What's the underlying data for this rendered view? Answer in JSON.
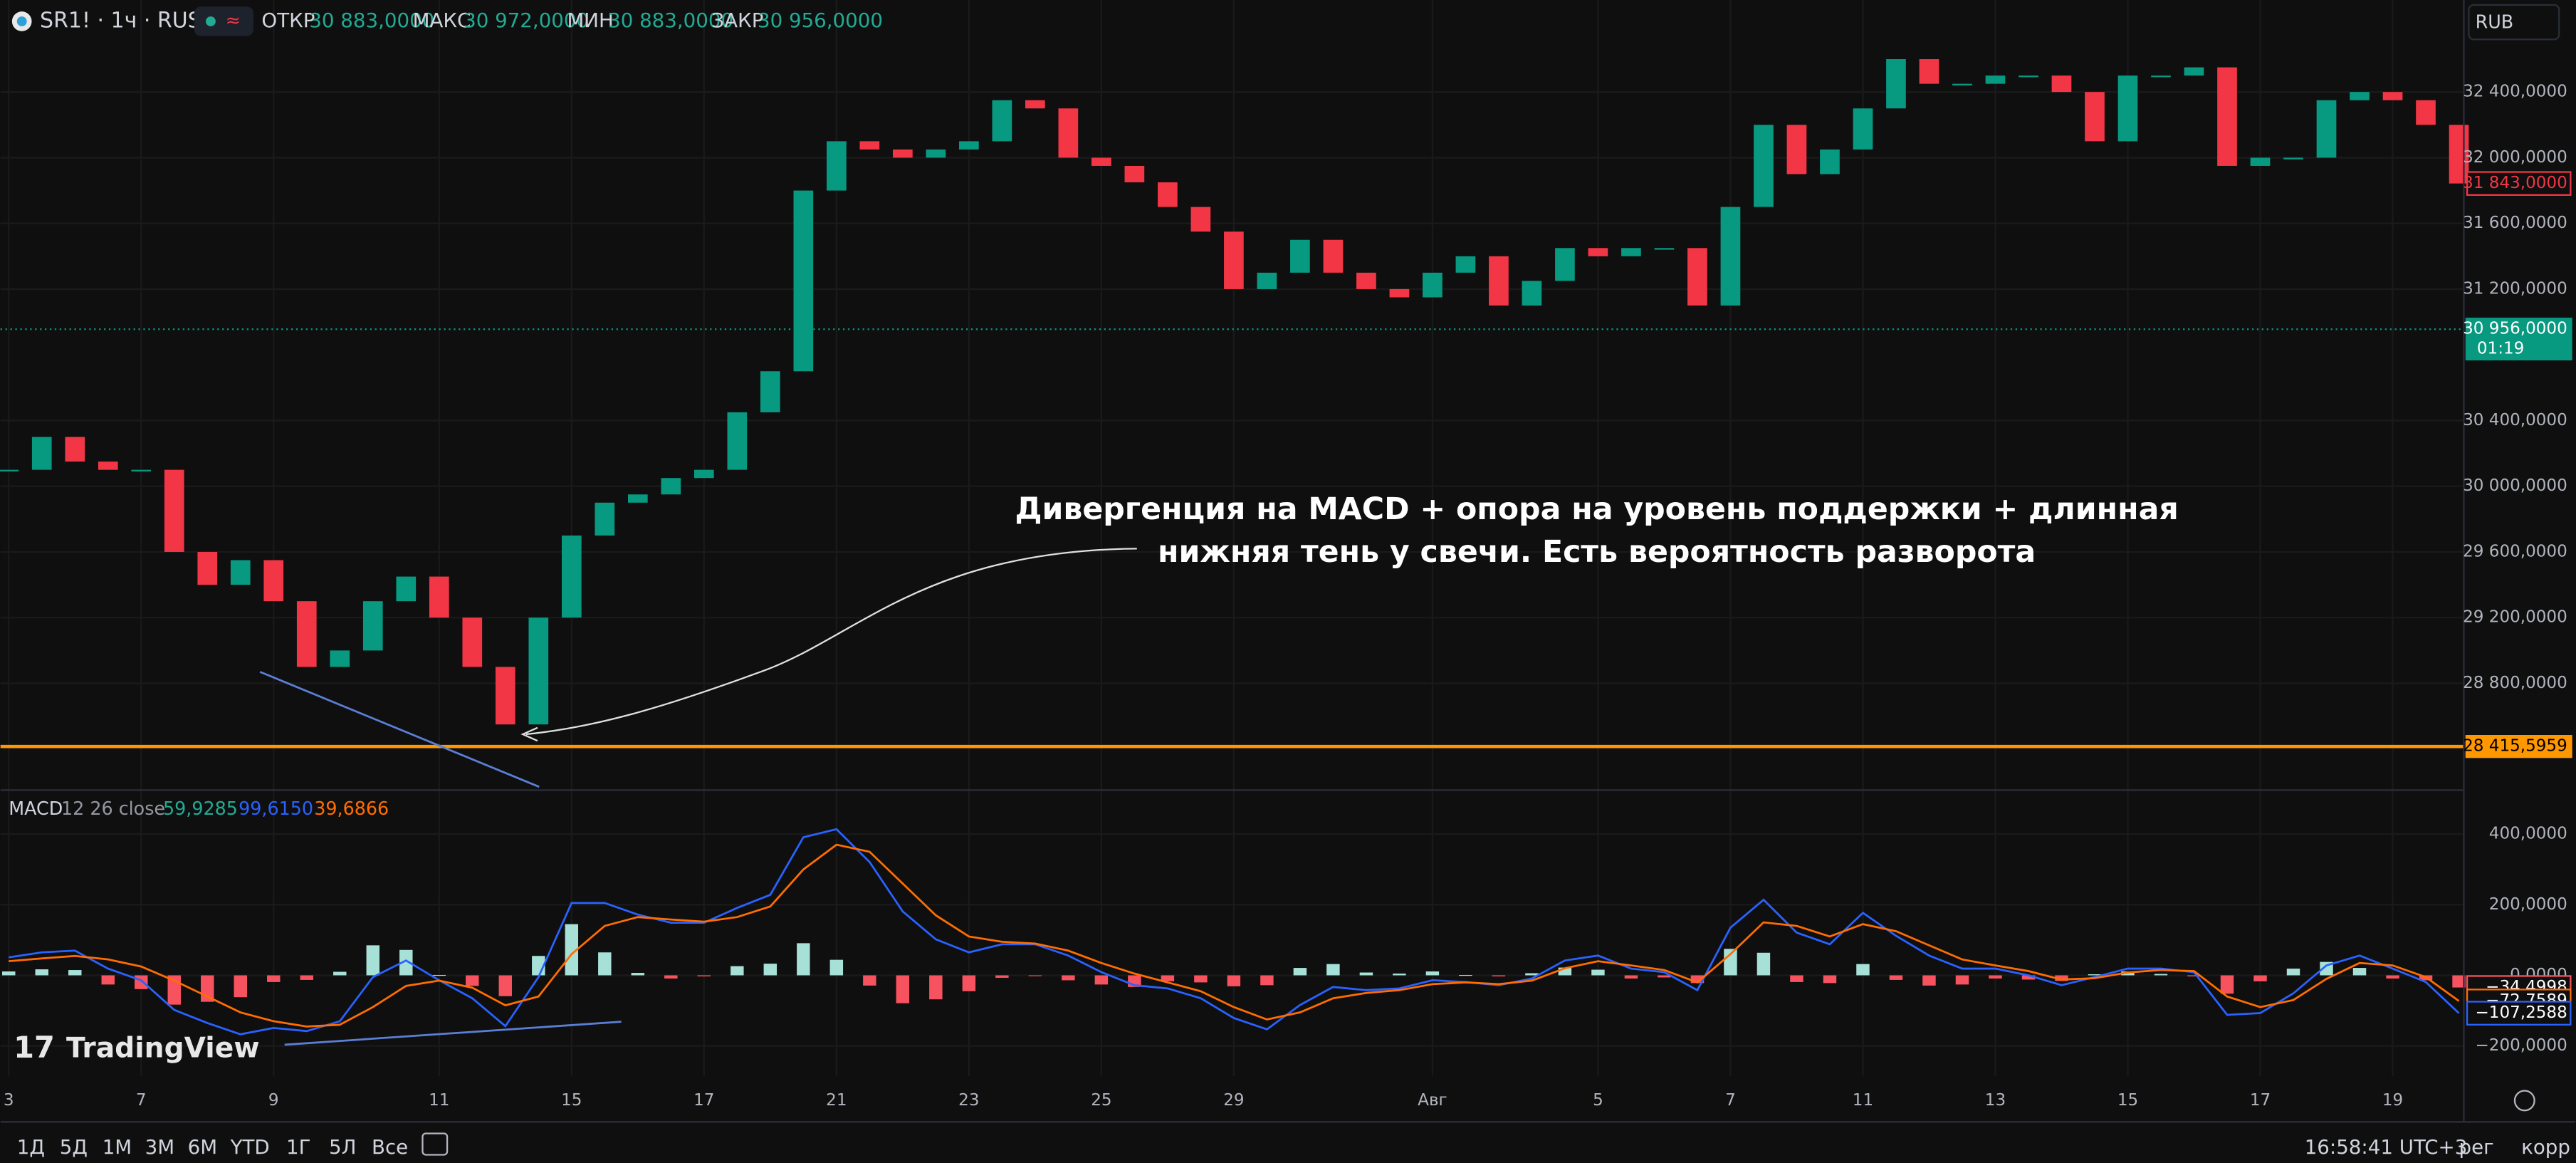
{
  "header": {
    "symbol": "SR1! · 1ч · RUS",
    "open_label": "ОТКР",
    "open": "30 883,0000",
    "high_label": "МАКС",
    "high": "30 972,0000",
    "low_label": "МИН",
    "low": "30 883,0000",
    "close_label": "ЗАКР",
    "close": "30 956,0000",
    "currency": "RUB"
  },
  "chart_data": [
    {
      "type": "candlestick",
      "categories": [
        "3",
        null,
        null,
        null,
        "7",
        null,
        null,
        null,
        "9",
        null,
        null,
        null,
        null,
        "11",
        null,
        null,
        null,
        "15",
        null,
        null,
        null,
        "17",
        null,
        null,
        null,
        "21",
        null,
        null,
        null,
        "23",
        null,
        null,
        null,
        "25",
        null,
        null,
        null,
        "29",
        null,
        null,
        null,
        null,
        null,
        "Авг",
        null,
        null,
        null,
        null,
        "5",
        null,
        null,
        null,
        "7",
        null,
        null,
        null,
        "11",
        null,
        null,
        null,
        "13",
        null,
        null,
        null,
        "15",
        null,
        null,
        null,
        "17",
        null,
        null,
        null,
        "19",
        null,
        null
      ],
      "values": [
        30100,
        30300,
        30150,
        30100,
        30100,
        29600,
        29400,
        29550,
        29300,
        28900,
        29000,
        29300,
        29450,
        29200,
        28900,
        28550,
        29200,
        29700,
        29900,
        29950,
        30050,
        30100,
        30450,
        30700,
        31800,
        32100,
        32050,
        32000,
        32050,
        32100,
        32350,
        32300,
        32000,
        31950,
        31850,
        31700,
        31550,
        31200,
        31300,
        31500,
        31300,
        31200,
        31150,
        31300,
        31400,
        31100,
        31250,
        31450,
        31400,
        31450,
        31450,
        31100,
        31700,
        32200,
        31900,
        32050,
        32300,
        32600,
        32450,
        32450,
        32500,
        32500,
        32400,
        32100,
        32500,
        32500,
        32550,
        31950,
        32000,
        32000,
        32350,
        32400,
        32350,
        32200,
        31843
      ],
      "up_color": "#089981",
      "down_color": "#f23645",
      "ylim": [
        28160,
        32960
      ],
      "yticks": [
        {
          "value": 32400,
          "label": "32 400,0000"
        },
        {
          "value": 32000,
          "label": "32 000,0000"
        },
        {
          "value": 31600,
          "label": "31 600,0000"
        },
        {
          "value": 31200,
          "label": "31 200,0000"
        },
        {
          "value": 30400,
          "label": "30 400,0000"
        },
        {
          "value": 30000,
          "label": "30 000,0000"
        },
        {
          "value": 29600,
          "label": "29 600,0000"
        },
        {
          "value": 29200,
          "label": "29 200,0000"
        },
        {
          "value": 28800,
          "label": "28 800,0000"
        }
      ],
      "grid": true,
      "last_price": {
        "value": 31843,
        "label": "31 843,0000",
        "color": "#f23645"
      },
      "current": {
        "value": 30956,
        "label": "30 956,0000",
        "timer": "01:19",
        "color": "#089981"
      },
      "level": {
        "value": 28415.5959,
        "label": "28 415,5959",
        "color": "#ff9800"
      },
      "annotation": [
        "Дивергенция на MACD + опора на уровень поддержки + длинная",
        "нижняя тень у свечи. Есть вероятность разворота"
      ]
    },
    {
      "type": "macd",
      "title": "MACD",
      "params": "12 26 close",
      "legend_values": [
        {
          "value": 59.9285,
          "label": "59,9285",
          "color": "#22ab94"
        },
        {
          "value": 99.615,
          "label": "99,6150",
          "color": "#2962ff"
        },
        {
          "value": 39.6866,
          "label": "39,6866",
          "color": "#ff6d00"
        }
      ],
      "histogram": {
        "values": [
          11,
          17,
          15,
          -26,
          -39,
          -83,
          -75,
          -62,
          -19,
          -13,
          10,
          85,
          72,
          1,
          -30,
          -59,
          55,
          145,
          65,
          7,
          -9,
          -3,
          26,
          33,
          91,
          44,
          -29,
          -79,
          -68,
          -45,
          -7,
          -2,
          -14,
          -26,
          -33,
          -17,
          -20,
          -31,
          -28,
          21,
          32,
          8,
          5,
          11,
          1,
          -3,
          6,
          22,
          16,
          -9,
          -6,
          -22,
          75,
          64,
          -19,
          -22,
          32,
          -13,
          -29,
          -26,
          -9,
          -12,
          -16,
          3,
          11,
          4,
          -3,
          -52,
          -17,
          19,
          38,
          21,
          -9,
          -14,
          -34.4998
        ],
        "color_up": "#a7e0d6",
        "color_down": "#f7525f"
      },
      "macd": {
        "values": [
          51,
          65,
          70,
          19,
          -14,
          -98,
          -135,
          -167,
          -149,
          -158,
          -130,
          -5,
          42,
          -14,
          -65,
          -144,
          -5,
          205,
          205,
          172,
          149,
          149,
          191,
          228,
          391,
          414,
          321,
          181,
          102,
          65,
          88,
          88,
          56,
          9,
          -28,
          -37,
          -65,
          -121,
          -153,
          -84,
          -33,
          -42,
          -37,
          -14,
          -19,
          -28,
          -9,
          42,
          56,
          19,
          9,
          -42,
          135,
          214,
          121,
          88,
          177,
          112,
          56,
          19,
          19,
          0,
          -28,
          -5,
          19,
          19,
          9,
          -112,
          -107,
          -51,
          28,
          56,
          19,
          -19,
          -107.2588
        ],
        "color": "#2962ff"
      },
      "signal": {
        "values": [
          40,
          48,
          55,
          45,
          25,
          -15,
          -60,
          -105,
          -130,
          -145,
          -140,
          -90,
          -30,
          -15,
          -35,
          -85,
          -60,
          60,
          140,
          165,
          158,
          152,
          165,
          195,
          300,
          370,
          350,
          260,
          170,
          110,
          95,
          90,
          70,
          35,
          5,
          -20,
          -45,
          -90,
          -125,
          -105,
          -65,
          -50,
          -42,
          -25,
          -20,
          -25,
          -15,
          20,
          40,
          28,
          15,
          -20,
          60,
          150,
          140,
          110,
          145,
          125,
          85,
          45,
          28,
          12,
          -12,
          -8,
          8,
          15,
          12,
          -60,
          -90,
          -70,
          -10,
          35,
          28,
          -5,
          -72.7589
        ],
        "color": "#ff6d00"
      },
      "ylim": [
        -285,
        520
      ],
      "yticks": [
        {
          "value": 400,
          "label": "400,0000"
        },
        {
          "value": 200,
          "label": "200,0000"
        },
        {
          "value": 0,
          "label": "0,0000"
        },
        {
          "value": -200,
          "label": "−200,0000"
        }
      ],
      "last_labels": [
        {
          "value": -34.4998,
          "label": "−34,4998",
          "color": "#f7525f"
        },
        {
          "value": -72.7589,
          "label": "−72,7589",
          "color": "#ff6d00"
        },
        {
          "value": -107.2588,
          "label": "−107,2588",
          "color": "#2962ff"
        }
      ]
    }
  ],
  "watermark": "TradingView",
  "toolbar": {
    "ranges": [
      "1Д",
      "5Д",
      "1М",
      "3М",
      "6М",
      "YTD",
      "1Г",
      "5Л",
      "Все"
    ],
    "clock": "16:58:41 UTC+3",
    "session": "рег",
    "adjust": "корр"
  }
}
